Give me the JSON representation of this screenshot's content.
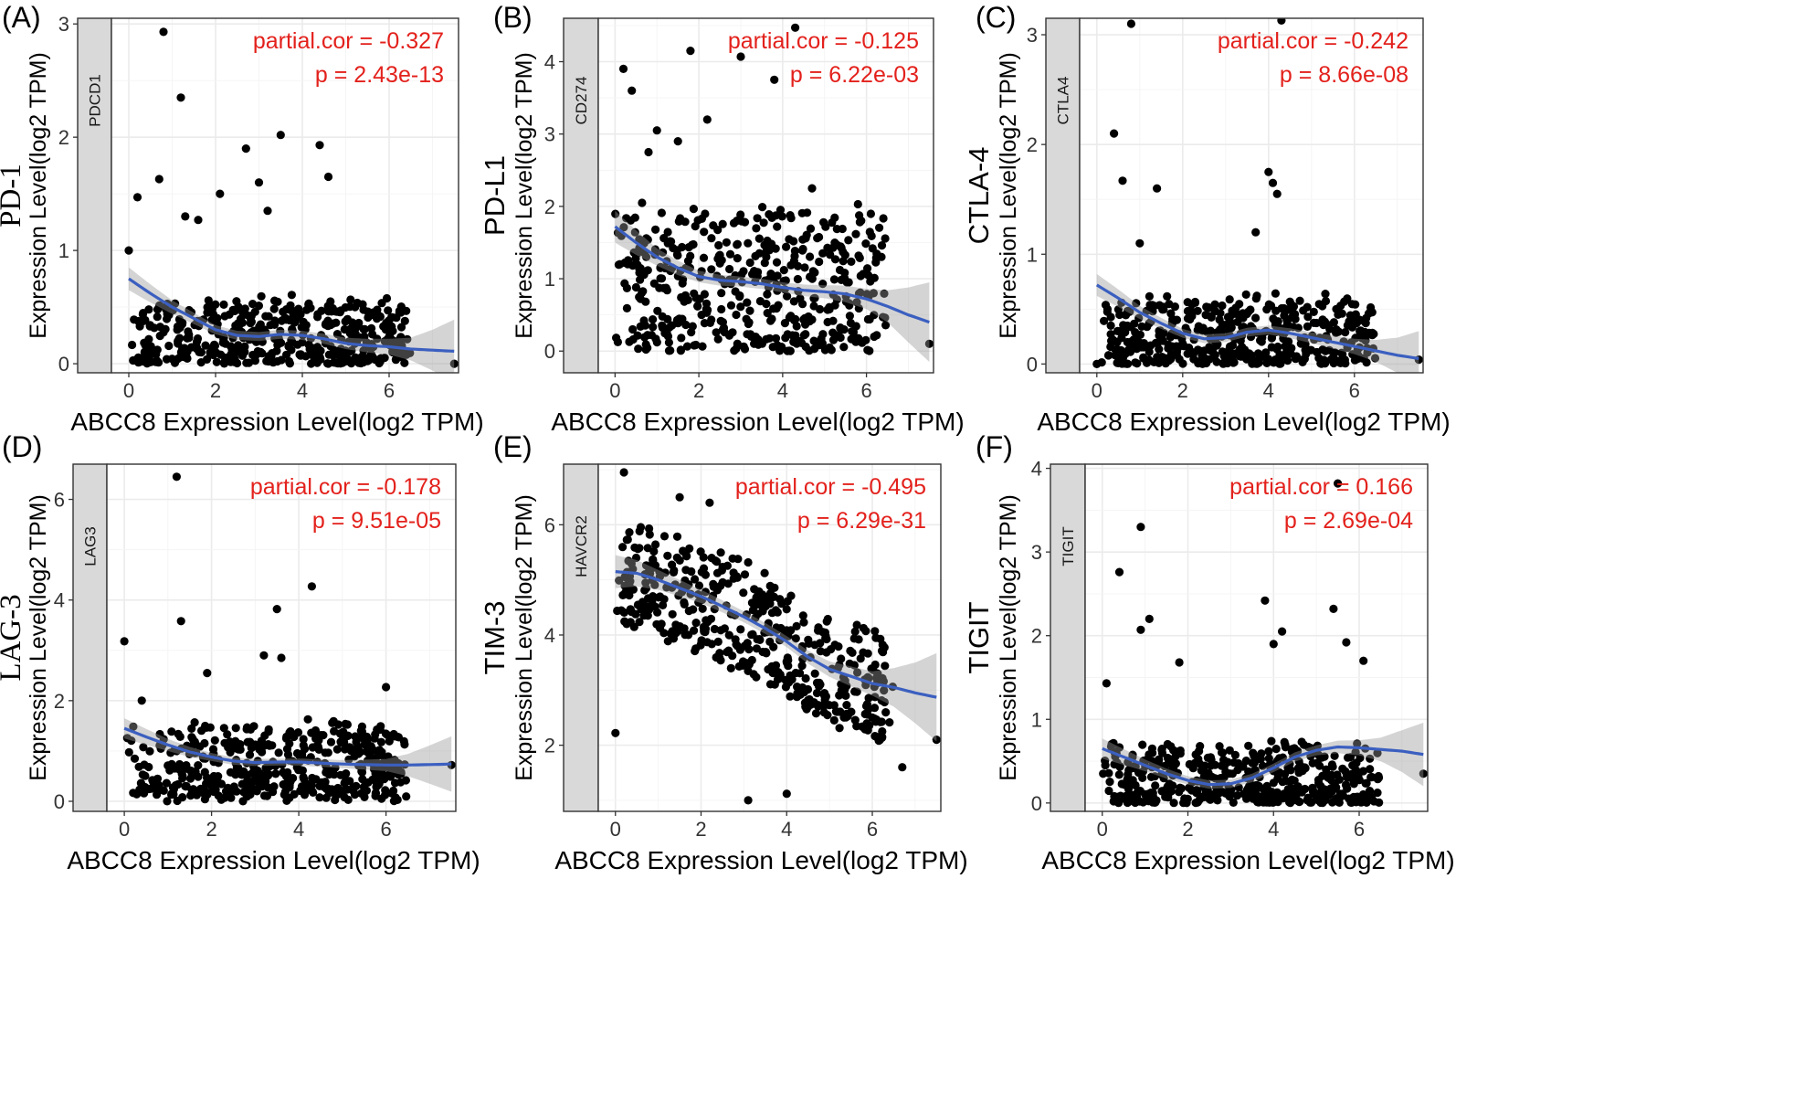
{
  "chart_data": [
    {
      "type": "scatter",
      "panel_label": "(A)",
      "title": "PD-1",
      "title_style": "serif",
      "ylabel": "Expression Level(log2 TPM)",
      "xlabel": "ABCC8 Expression Level(log2 TPM)",
      "strip_label": "PDCD1",
      "stat_cor": "partial.cor = -0.327",
      "stat_p": "p = 2.43e-13",
      "xlim": [
        -0.4,
        7.6
      ],
      "ylim": [
        -0.08,
        3.05
      ],
      "xticks": [
        0,
        2,
        4,
        6
      ],
      "yticks": [
        0,
        1,
        2,
        3
      ],
      "n_points": 470,
      "dense_ymin": 0.0,
      "dense_ymax": 0.55,
      "noise": 0.12,
      "seed": 11,
      "highlight_points": [
        [
          0.8,
          2.93
        ],
        [
          1.2,
          2.35
        ],
        [
          3.5,
          2.02
        ],
        [
          4.4,
          1.93
        ],
        [
          2.7,
          1.9
        ],
        [
          4.6,
          1.65
        ],
        [
          0.7,
          1.63
        ],
        [
          3.0,
          1.6
        ],
        [
          2.1,
          1.5
        ],
        [
          0.2,
          1.47
        ],
        [
          1.3,
          1.3
        ],
        [
          0.0,
          1.0
        ],
        [
          1.6,
          1.27
        ],
        [
          7.5,
          0.0
        ],
        [
          3.2,
          1.35
        ]
      ],
      "trend": {
        "x": [
          0,
          0.5,
          1,
          1.5,
          2,
          2.5,
          3,
          3.5,
          4,
          4.5,
          5,
          5.5,
          6,
          6.5,
          7,
          7.5
        ],
        "y": [
          0.75,
          0.62,
          0.5,
          0.4,
          0.3,
          0.25,
          0.24,
          0.26,
          0.25,
          0.22,
          0.18,
          0.16,
          0.15,
          0.13,
          0.12,
          0.11
        ]
      },
      "band_halfwidth": {
        "x": [
          0,
          1,
          2,
          3,
          4,
          5,
          6,
          6.5,
          7,
          7.5
        ],
        "w": [
          0.1,
          0.06,
          0.04,
          0.04,
          0.04,
          0.05,
          0.07,
          0.1,
          0.18,
          0.28
        ]
      }
    },
    {
      "type": "scatter",
      "panel_label": "(B)",
      "title": "PD-L1",
      "title_style": "sans",
      "ylabel": "Expression Level(log2 TPM)",
      "xlabel": "ABCC8 Expression Level(log2 TPM)",
      "strip_label": "CD274",
      "stat_cor": "partial.cor = -0.125",
      "stat_p": "p = 6.22e-03",
      "xlim": [
        -0.4,
        7.6
      ],
      "ylim": [
        -0.3,
        4.6
      ],
      "xticks": [
        0,
        2,
        4,
        6
      ],
      "yticks": [
        0,
        1,
        2,
        3,
        4
      ],
      "n_points": 470,
      "dense_ymin": 0.05,
      "dense_ymax": 2.0,
      "noise": 0.25,
      "seed": 23,
      "highlight_points": [
        [
          4.3,
          4.47
        ],
        [
          1.8,
          4.15
        ],
        [
          3.0,
          4.07
        ],
        [
          0.2,
          3.9
        ],
        [
          3.8,
          3.75
        ],
        [
          0.4,
          3.6
        ],
        [
          2.2,
          3.2
        ],
        [
          1.0,
          3.05
        ],
        [
          0.8,
          2.75
        ],
        [
          1.5,
          2.9
        ],
        [
          7.5,
          0.1
        ],
        [
          4.7,
          2.25
        ]
      ],
      "trend": {
        "x": [
          0,
          0.5,
          1,
          1.5,
          2,
          2.5,
          3,
          3.5,
          4,
          4.5,
          5,
          5.5,
          6,
          6.5,
          7,
          7.5
        ],
        "y": [
          1.72,
          1.5,
          1.3,
          1.15,
          1.03,
          0.98,
          0.96,
          0.93,
          0.88,
          0.84,
          0.82,
          0.79,
          0.72,
          0.62,
          0.5,
          0.4
        ]
      },
      "band_halfwidth": {
        "x": [
          0,
          1,
          2,
          3,
          4,
          5,
          6,
          6.5,
          7,
          7.5
        ],
        "w": [
          0.22,
          0.12,
          0.08,
          0.07,
          0.07,
          0.09,
          0.14,
          0.22,
          0.38,
          0.55
        ]
      }
    },
    {
      "type": "scatter",
      "panel_label": "(C)",
      "title": "CTLA-4",
      "title_style": "sans",
      "ylabel": "Expression Level(log2 TPM)",
      "xlabel": "ABCC8 Expression Level(log2 TPM)",
      "strip_label": "CTLA4",
      "stat_cor": "partial.cor = -0.242",
      "stat_p": "p = 8.66e-08",
      "xlim": [
        -0.4,
        7.6
      ],
      "ylim": [
        -0.08,
        3.15
      ],
      "xticks": [
        0,
        2,
        4,
        6
      ],
      "yticks": [
        0,
        1,
        2,
        3
      ],
      "n_points": 470,
      "dense_ymin": 0.0,
      "dense_ymax": 0.6,
      "noise": 0.12,
      "seed": 37,
      "highlight_points": [
        [
          0.8,
          3.1
        ],
        [
          4.3,
          3.13
        ],
        [
          0.4,
          2.1
        ],
        [
          4.0,
          1.75
        ],
        [
          4.1,
          1.65
        ],
        [
          0.6,
          1.67
        ],
        [
          1.4,
          1.6
        ],
        [
          4.2,
          1.55
        ],
        [
          3.7,
          1.2
        ],
        [
          0.0,
          0.0
        ],
        [
          7.5,
          0.04
        ],
        [
          1.0,
          1.1
        ]
      ],
      "trend": {
        "x": [
          0,
          0.5,
          1,
          1.5,
          2,
          2.5,
          3,
          3.5,
          4,
          4.5,
          5,
          5.5,
          6,
          6.5,
          7,
          7.5
        ],
        "y": [
          0.72,
          0.6,
          0.47,
          0.37,
          0.28,
          0.23,
          0.24,
          0.29,
          0.31,
          0.28,
          0.24,
          0.2,
          0.16,
          0.12,
          0.08,
          0.05
        ]
      },
      "band_halfwidth": {
        "x": [
          0,
          1,
          2,
          3,
          4,
          5,
          6,
          6.5,
          7,
          7.5
        ],
        "w": [
          0.1,
          0.06,
          0.04,
          0.04,
          0.04,
          0.05,
          0.07,
          0.1,
          0.16,
          0.25
        ]
      }
    },
    {
      "type": "scatter",
      "panel_label": "(D)",
      "title": "LAG-3",
      "title_style": "serif",
      "ylabel": "Expression Level(log2 TPM)",
      "xlabel": "ABCC8 Expression Level(log2 TPM)",
      "strip_label": "LAG3",
      "stat_cor": "partial.cor = -0.178",
      "stat_p": "p = 9.51e-05",
      "xlim": [
        -0.4,
        7.6
      ],
      "ylim": [
        -0.2,
        6.7
      ],
      "xticks": [
        0,
        2,
        4,
        6
      ],
      "yticks": [
        0,
        2,
        4,
        6
      ],
      "n_points": 470,
      "dense_ymin": 0.1,
      "dense_ymax": 1.5,
      "noise": 0.3,
      "seed": 51,
      "highlight_points": [
        [
          1.2,
          6.45
        ],
        [
          4.3,
          4.27
        ],
        [
          3.5,
          3.82
        ],
        [
          1.3,
          3.58
        ],
        [
          0.0,
          3.18
        ],
        [
          3.2,
          2.9
        ],
        [
          3.6,
          2.85
        ],
        [
          6.0,
          2.27
        ],
        [
          1.9,
          2.55
        ],
        [
          7.5,
          0.72
        ],
        [
          0.4,
          2.0
        ]
      ],
      "trend": {
        "x": [
          0,
          0.5,
          1,
          1.5,
          2,
          2.5,
          3,
          3.5,
          4,
          4.5,
          5,
          5.5,
          6,
          6.5,
          7,
          7.5
        ],
        "y": [
          1.45,
          1.28,
          1.12,
          0.98,
          0.88,
          0.8,
          0.77,
          0.78,
          0.78,
          0.76,
          0.74,
          0.73,
          0.72,
          0.72,
          0.73,
          0.74
        ]
      },
      "band_halfwidth": {
        "x": [
          0,
          1,
          2,
          3,
          4,
          5,
          6,
          6.5,
          7,
          7.5
        ],
        "w": [
          0.2,
          0.12,
          0.08,
          0.07,
          0.07,
          0.08,
          0.12,
          0.22,
          0.38,
          0.55
        ]
      }
    },
    {
      "type": "scatter",
      "panel_label": "(E)",
      "title": "TIM-3",
      "title_style": "sans",
      "ylabel": "Expression Level(log2 TPM)",
      "xlabel": "ABCC8 Expression Level(log2 TPM)",
      "strip_label": "HAVCR2",
      "stat_cor": "partial.cor = -0.495",
      "stat_p": "p = 6.29e-31",
      "xlim": [
        -0.4,
        7.6
      ],
      "ylim": [
        0.8,
        7.1
      ],
      "xticks": [
        0,
        2,
        4,
        6
      ],
      "yticks": [
        2,
        4,
        6
      ],
      "n_points": 470,
      "dense_ymin": -0.9,
      "dense_ymax": 0.9,
      "noise": 0.35,
      "relative_to_trend": true,
      "seed": 67,
      "highlight_points": [
        [
          0.2,
          6.95
        ],
        [
          0.0,
          2.22
        ],
        [
          3.1,
          1.0
        ],
        [
          4.0,
          1.12
        ],
        [
          6.7,
          1.6
        ],
        [
          7.5,
          2.1
        ],
        [
          1.5,
          6.5
        ],
        [
          2.2,
          6.4
        ]
      ],
      "trend": {
        "x": [
          0,
          0.5,
          1,
          1.5,
          2,
          2.5,
          3,
          3.5,
          4,
          4.5,
          5,
          5.5,
          6,
          6.5,
          7,
          7.5
        ],
        "y": [
          5.15,
          5.12,
          5.0,
          4.85,
          4.7,
          4.52,
          4.33,
          4.12,
          3.88,
          3.6,
          3.38,
          3.25,
          3.12,
          3.05,
          2.95,
          2.87
        ]
      },
      "band_halfwidth": {
        "x": [
          0,
          1,
          2,
          3,
          4,
          5,
          6,
          6.5,
          7,
          7.5
        ],
        "w": [
          0.3,
          0.18,
          0.12,
          0.1,
          0.1,
          0.14,
          0.22,
          0.35,
          0.55,
          0.8
        ]
      }
    },
    {
      "type": "scatter",
      "panel_label": "(F)",
      "title": "TIGIT",
      "title_style": "sans",
      "ylabel": "Expression Level(log2 TPM)",
      "xlabel": "ABCC8 Expression Level(log2 TPM)",
      "strip_label": "TIGIT",
      "stat_cor": "partial.cor = 0.166",
      "stat_p": "p = 2.69e-04",
      "xlim": [
        -0.4,
        7.6
      ],
      "ylim": [
        -0.1,
        4.05
      ],
      "xticks": [
        0,
        2,
        4,
        6
      ],
      "yticks": [
        0,
        1,
        2,
        3,
        4
      ],
      "n_points": 470,
      "dense_ymin": 0.0,
      "dense_ymax": 0.7,
      "noise": 0.14,
      "seed": 83,
      "highlight_points": [
        [
          5.5,
          3.82
        ],
        [
          0.9,
          3.3
        ],
        [
          0.4,
          2.76
        ],
        [
          3.8,
          2.42
        ],
        [
          5.4,
          2.32
        ],
        [
          1.1,
          2.2
        ],
        [
          0.9,
          2.07
        ],
        [
          4.2,
          2.05
        ],
        [
          5.7,
          1.92
        ],
        [
          4.0,
          1.9
        ],
        [
          6.1,
          1.7
        ],
        [
          1.8,
          1.68
        ],
        [
          0.1,
          1.43
        ],
        [
          7.5,
          0.35
        ]
      ],
      "trend": {
        "x": [
          0,
          0.5,
          1,
          1.5,
          2,
          2.5,
          3,
          3.5,
          4,
          4.5,
          5,
          5.5,
          6,
          6.5,
          7,
          7.5
        ],
        "y": [
          0.65,
          0.55,
          0.45,
          0.35,
          0.27,
          0.22,
          0.23,
          0.3,
          0.42,
          0.55,
          0.63,
          0.67,
          0.66,
          0.64,
          0.62,
          0.58
        ]
      },
      "band_halfwidth": {
        "x": [
          0,
          1,
          2,
          3,
          4,
          5,
          6,
          6.5,
          7,
          7.5
        ],
        "w": [
          0.12,
          0.07,
          0.05,
          0.05,
          0.05,
          0.06,
          0.09,
          0.14,
          0.25,
          0.38
        ]
      }
    }
  ]
}
